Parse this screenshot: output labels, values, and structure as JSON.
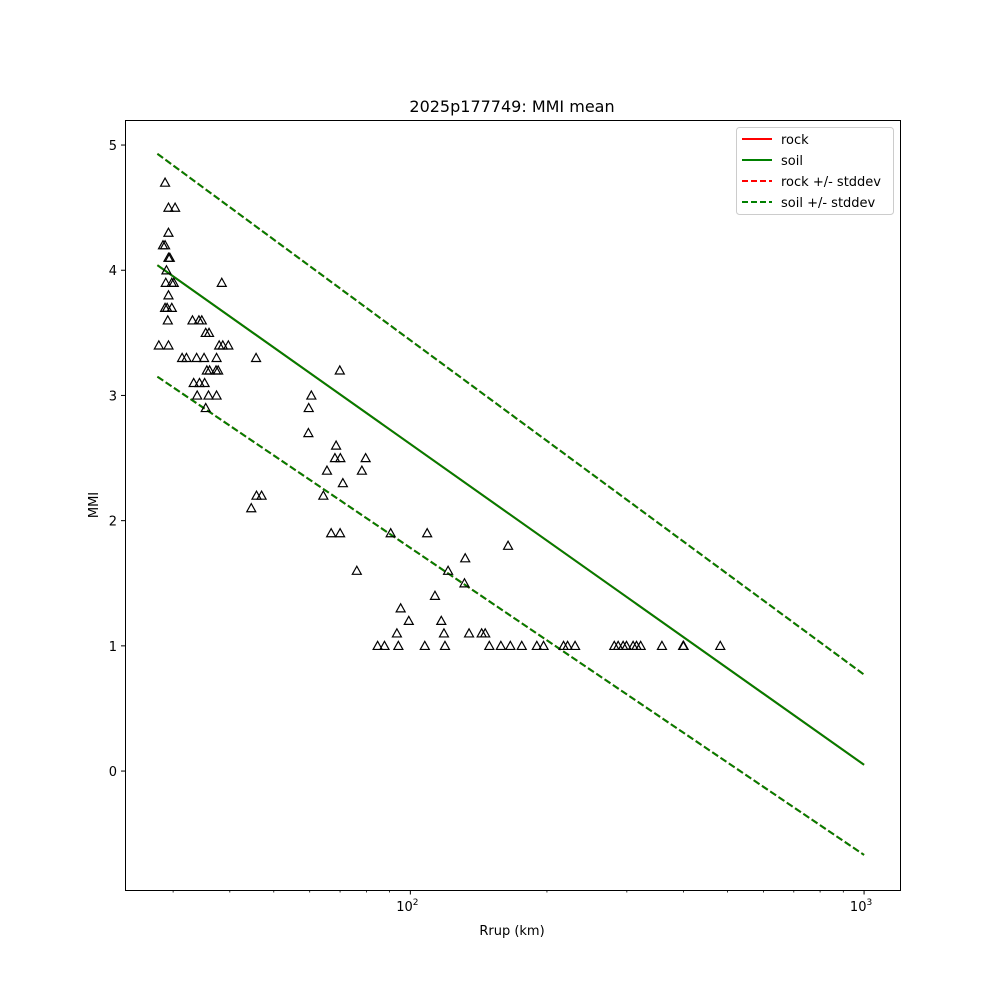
{
  "chart_data": {
    "type": "scatter",
    "title": "2025p177749: MMI mean",
    "xlabel": "Rrup (km)",
    "ylabel": "MMI",
    "xscale": "log",
    "xlim": [
      23.5,
      1200
    ],
    "ylim": [
      -0.95,
      5.2
    ],
    "x_ticks": [
      {
        "value": 100,
        "base": "10",
        "exp": "2"
      },
      {
        "value": 1000,
        "base": "10",
        "exp": "3"
      }
    ],
    "x_minor_ticks": [
      30,
      40,
      50,
      60,
      70,
      80,
      90,
      200,
      300,
      400,
      500,
      600,
      700,
      800,
      900
    ],
    "y_ticks": [
      {
        "value": 0,
        "label": "0"
      },
      {
        "value": 1,
        "label": "1"
      },
      {
        "value": 2,
        "label": "2"
      },
      {
        "value": 3,
        "label": "3"
      },
      {
        "value": 4,
        "label": "4"
      },
      {
        "value": 5,
        "label": "5"
      }
    ],
    "grid": false,
    "legend_position": "top-right",
    "legend": [
      {
        "label": "rock",
        "color": "#ff0000",
        "dash": false
      },
      {
        "label": "soil",
        "color": "#008000",
        "dash": false
      },
      {
        "label": "rock +/- stddev",
        "color": "#ff0000",
        "dash": true
      },
      {
        "label": "soil +/- stddev",
        "color": "#008000",
        "dash": true
      }
    ],
    "lines": [
      {
        "name": "rock",
        "color": "#ff0000",
        "dash": false,
        "x": [
          27.7,
          1000
        ],
        "y": [
          4.04,
          0.05
        ]
      },
      {
        "name": "soil",
        "color": "#008000",
        "dash": false,
        "x": [
          27.7,
          1000
        ],
        "y": [
          4.04,
          0.05
        ]
      },
      {
        "name": "rock +/- stddev",
        "color": "#ff0000",
        "dash": true,
        "x": [
          27.7,
          1000
        ],
        "y": [
          4.93,
          0.77
        ]
      },
      {
        "name": "rock +/- stddev",
        "color": "#ff0000",
        "dash": true,
        "x": [
          27.7,
          1000
        ],
        "y": [
          3.15,
          -0.67
        ]
      },
      {
        "name": "soil +/- stddev",
        "color": "#008000",
        "dash": true,
        "x": [
          27.7,
          1000
        ],
        "y": [
          4.93,
          0.77
        ]
      },
      {
        "name": "soil +/- stddev",
        "color": "#008000",
        "dash": true,
        "x": [
          27.7,
          1000
        ],
        "y": [
          3.15,
          -0.67
        ]
      }
    ],
    "points": [
      {
        "x": 28.8,
        "y": 4.7
      },
      {
        "x": 28.5,
        "y": 4.2
      },
      {
        "x": 28.8,
        "y": 4.2
      },
      {
        "x": 29.3,
        "y": 4.5
      },
      {
        "x": 30.3,
        "y": 4.5
      },
      {
        "x": 29.3,
        "y": 4.3
      },
      {
        "x": 29.3,
        "y": 4.1
      },
      {
        "x": 29.5,
        "y": 4.1
      },
      {
        "x": 29.0,
        "y": 4.0
      },
      {
        "x": 28.9,
        "y": 3.9
      },
      {
        "x": 29.8,
        "y": 3.9
      },
      {
        "x": 30.1,
        "y": 3.9
      },
      {
        "x": 29.3,
        "y": 3.8
      },
      {
        "x": 28.8,
        "y": 3.7
      },
      {
        "x": 29.1,
        "y": 3.7
      },
      {
        "x": 29.8,
        "y": 3.7
      },
      {
        "x": 29.2,
        "y": 3.6
      },
      {
        "x": 27.9,
        "y": 3.4
      },
      {
        "x": 29.3,
        "y": 3.4
      },
      {
        "x": 33.1,
        "y": 3.6
      },
      {
        "x": 34.2,
        "y": 3.6
      },
      {
        "x": 34.7,
        "y": 3.6
      },
      {
        "x": 35.4,
        "y": 3.5
      },
      {
        "x": 36.0,
        "y": 3.5
      },
      {
        "x": 38.4,
        "y": 3.9
      },
      {
        "x": 37.9,
        "y": 3.4
      },
      {
        "x": 38.6,
        "y": 3.4
      },
      {
        "x": 39.7,
        "y": 3.4
      },
      {
        "x": 31.4,
        "y": 3.3
      },
      {
        "x": 32.1,
        "y": 3.3
      },
      {
        "x": 33.8,
        "y": 3.3
      },
      {
        "x": 35.1,
        "y": 3.3
      },
      {
        "x": 37.4,
        "y": 3.3
      },
      {
        "x": 35.6,
        "y": 3.2
      },
      {
        "x": 36.1,
        "y": 3.2
      },
      {
        "x": 37.3,
        "y": 3.2
      },
      {
        "x": 37.7,
        "y": 3.2
      },
      {
        "x": 33.3,
        "y": 3.1
      },
      {
        "x": 34.3,
        "y": 3.1
      },
      {
        "x": 35.2,
        "y": 3.1
      },
      {
        "x": 33.9,
        "y": 3.0
      },
      {
        "x": 35.9,
        "y": 3.0
      },
      {
        "x": 37.4,
        "y": 3.0
      },
      {
        "x": 35.4,
        "y": 2.9
      },
      {
        "x": 45.7,
        "y": 3.3
      },
      {
        "x": 45.8,
        "y": 2.2
      },
      {
        "x": 47.0,
        "y": 2.2
      },
      {
        "x": 44.6,
        "y": 2.1
      },
      {
        "x": 60.5,
        "y": 3.0
      },
      {
        "x": 59.7,
        "y": 2.9
      },
      {
        "x": 59.6,
        "y": 2.7
      },
      {
        "x": 69.9,
        "y": 3.2
      },
      {
        "x": 68.6,
        "y": 2.6
      },
      {
        "x": 68.2,
        "y": 2.5
      },
      {
        "x": 70.1,
        "y": 2.5
      },
      {
        "x": 79.7,
        "y": 2.5
      },
      {
        "x": 65.5,
        "y": 2.4
      },
      {
        "x": 78.2,
        "y": 2.4
      },
      {
        "x": 71.0,
        "y": 2.3
      },
      {
        "x": 64.3,
        "y": 2.2
      },
      {
        "x": 66.9,
        "y": 1.9
      },
      {
        "x": 70.0,
        "y": 1.9
      },
      {
        "x": 90.5,
        "y": 1.9
      },
      {
        "x": 76.2,
        "y": 1.6
      },
      {
        "x": 108.9,
        "y": 1.9
      },
      {
        "x": 164.2,
        "y": 1.8
      },
      {
        "x": 132.1,
        "y": 1.7
      },
      {
        "x": 121.1,
        "y": 1.6
      },
      {
        "x": 131.6,
        "y": 1.5
      },
      {
        "x": 113.3,
        "y": 1.4
      },
      {
        "x": 95.2,
        "y": 1.3
      },
      {
        "x": 99.2,
        "y": 1.2
      },
      {
        "x": 117.0,
        "y": 1.2
      },
      {
        "x": 93.4,
        "y": 1.1
      },
      {
        "x": 118.6,
        "y": 1.1
      },
      {
        "x": 134.7,
        "y": 1.1
      },
      {
        "x": 143.6,
        "y": 1.1
      },
      {
        "x": 146.2,
        "y": 1.1
      },
      {
        "x": 84.7,
        "y": 1.0
      },
      {
        "x": 87.7,
        "y": 1.0
      },
      {
        "x": 94.1,
        "y": 1.0
      },
      {
        "x": 107.6,
        "y": 1.0
      },
      {
        "x": 119.2,
        "y": 1.0
      },
      {
        "x": 149.3,
        "y": 1.0
      },
      {
        "x": 158.3,
        "y": 1.0
      },
      {
        "x": 166.1,
        "y": 1.0
      },
      {
        "x": 176.0,
        "y": 1.0
      },
      {
        "x": 190.0,
        "y": 1.0
      },
      {
        "x": 196.6,
        "y": 1.0
      },
      {
        "x": 217.6,
        "y": 1.0
      },
      {
        "x": 222.1,
        "y": 1.0
      },
      {
        "x": 230.7,
        "y": 1.0
      },
      {
        "x": 281.5,
        "y": 1.0
      },
      {
        "x": 287.1,
        "y": 1.0
      },
      {
        "x": 294.4,
        "y": 1.0
      },
      {
        "x": 299.5,
        "y": 1.0
      },
      {
        "x": 309.7,
        "y": 1.0
      },
      {
        "x": 315.1,
        "y": 1.0
      },
      {
        "x": 321.8,
        "y": 1.0
      },
      {
        "x": 358.5,
        "y": 1.0
      },
      {
        "x": 399.2,
        "y": 1.0
      },
      {
        "x": 400.2,
        "y": 1.0
      },
      {
        "x": 482.0,
        "y": 1.0
      }
    ]
  }
}
